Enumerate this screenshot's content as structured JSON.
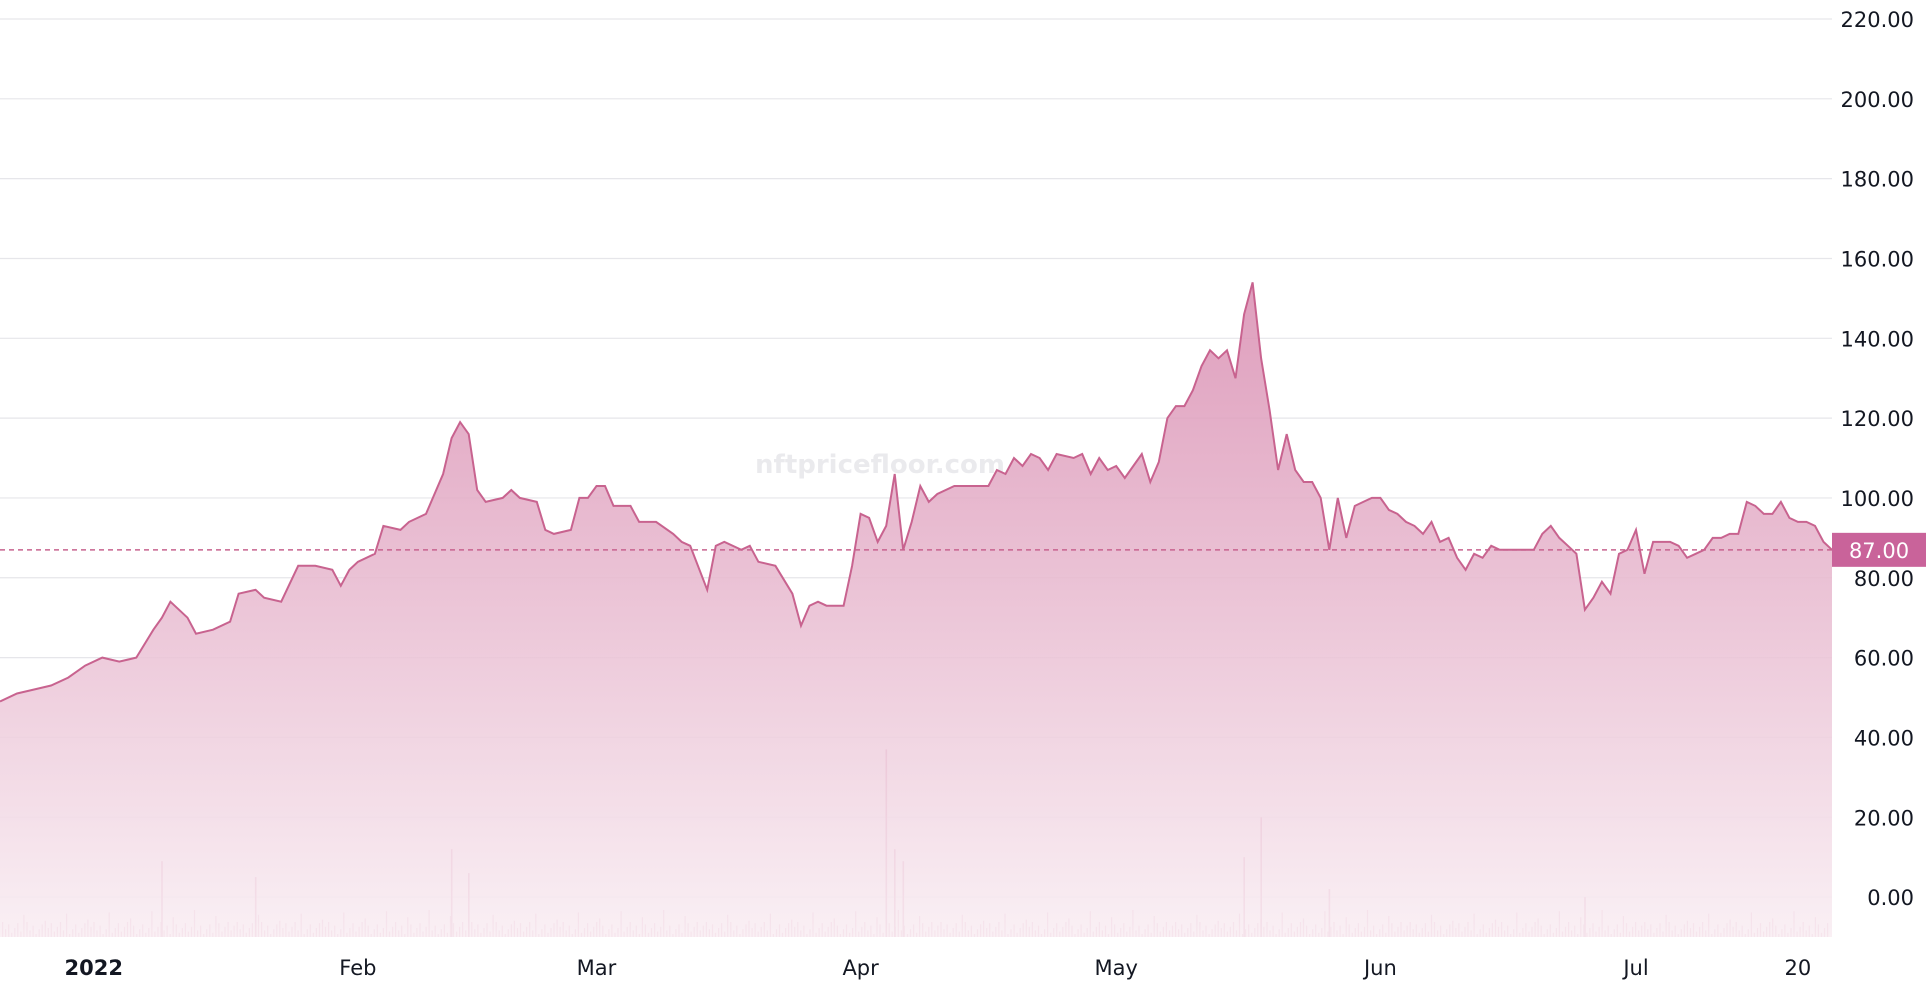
{
  "watermark": "nftpricefloor.com",
  "colors": {
    "line": "#c8638f",
    "fill_top": "#d98db1",
    "fill_bottom": "#f9eef3",
    "volume": "#d27ba2",
    "grid": "#e6e6ea",
    "price_label_bg": "#c9639a"
  },
  "current_price_label": "87.00",
  "chart_data": {
    "type": "area",
    "title": "",
    "xlabel": "",
    "ylabel": "",
    "ylim": [
      -10,
      222
    ],
    "y_axis_position": "right",
    "grid": true,
    "current_value": 87,
    "yticks": [
      "220.00",
      "200.00",
      "180.00",
      "160.00",
      "140.00",
      "120.00",
      "100.00",
      "80.00",
      "60.00",
      "40.00",
      "20.00",
      "0.00"
    ],
    "ytick_values": [
      220,
      200,
      180,
      160,
      140,
      120,
      100,
      80,
      60,
      40,
      20,
      0
    ],
    "xticks": [
      {
        "label": "2022",
        "date": "2022-01-01",
        "bold": true
      },
      {
        "label": "Feb",
        "date": "2022-02-01",
        "bold": false
      },
      {
        "label": "Mar",
        "date": "2022-03-01",
        "bold": false
      },
      {
        "label": "Apr",
        "date": "2022-04-01",
        "bold": false
      },
      {
        "label": "May",
        "date": "2022-05-01",
        "bold": false
      },
      {
        "label": "Jun",
        "date": "2022-06-01",
        "bold": false
      },
      {
        "label": "Jul",
        "date": "2022-07-01",
        "bold": false
      },
      {
        "label": "20",
        "date": "2022-07-20",
        "bold": false
      }
    ],
    "x_range": [
      "2021-12-21",
      "2022-07-24"
    ],
    "series": [
      {
        "points": [
          [
            "2021-12-21",
            49
          ],
          [
            "2021-12-23",
            51
          ],
          [
            "2021-12-25",
            52
          ],
          [
            "2021-12-27",
            53
          ],
          [
            "2021-12-29",
            55
          ],
          [
            "2021-12-31",
            58
          ],
          [
            "2022-01-02",
            60
          ],
          [
            "2022-01-04",
            59
          ],
          [
            "2022-01-06",
            60
          ],
          [
            "2022-01-08",
            67
          ],
          [
            "2022-01-09",
            70
          ],
          [
            "2022-01-10",
            74
          ],
          [
            "2022-01-12",
            70
          ],
          [
            "2022-01-13",
            66
          ],
          [
            "2022-01-15",
            67
          ],
          [
            "2022-01-17",
            69
          ],
          [
            "2022-01-18",
            76
          ],
          [
            "2022-01-20",
            77
          ],
          [
            "2022-01-21",
            75
          ],
          [
            "2022-01-23",
            74
          ],
          [
            "2022-01-25",
            83
          ],
          [
            "2022-01-27",
            83
          ],
          [
            "2022-01-29",
            82
          ],
          [
            "2022-01-30",
            78
          ],
          [
            "2022-01-31",
            82
          ],
          [
            "2022-02-01",
            84
          ],
          [
            "2022-02-03",
            86
          ],
          [
            "2022-02-04",
            93
          ],
          [
            "2022-02-06",
            92
          ],
          [
            "2022-02-07",
            94
          ],
          [
            "2022-02-09",
            96
          ],
          [
            "2022-02-11",
            106
          ],
          [
            "2022-02-12",
            115
          ],
          [
            "2022-02-13",
            119
          ],
          [
            "2022-02-14",
            116
          ],
          [
            "2022-02-15",
            102
          ],
          [
            "2022-02-16",
            99
          ],
          [
            "2022-02-18",
            100
          ],
          [
            "2022-02-19",
            102
          ],
          [
            "2022-02-20",
            100
          ],
          [
            "2022-02-22",
            99
          ],
          [
            "2022-02-23",
            92
          ],
          [
            "2022-02-24",
            91
          ],
          [
            "2022-02-26",
            92
          ],
          [
            "2022-02-27",
            100
          ],
          [
            "2022-02-28",
            100
          ],
          [
            "2022-03-01",
            103
          ],
          [
            "2022-03-02",
            103
          ],
          [
            "2022-03-03",
            98
          ],
          [
            "2022-03-05",
            98
          ],
          [
            "2022-03-06",
            94
          ],
          [
            "2022-03-08",
            94
          ],
          [
            "2022-03-10",
            91
          ],
          [
            "2022-03-11",
            89
          ],
          [
            "2022-03-12",
            88
          ],
          [
            "2022-03-14",
            77
          ],
          [
            "2022-03-15",
            88
          ],
          [
            "2022-03-16",
            89
          ],
          [
            "2022-03-18",
            87
          ],
          [
            "2022-03-19",
            88
          ],
          [
            "2022-03-20",
            84
          ],
          [
            "2022-03-22",
            83
          ],
          [
            "2022-03-24",
            76
          ],
          [
            "2022-03-25",
            68
          ],
          [
            "2022-03-26",
            73
          ],
          [
            "2022-03-27",
            74
          ],
          [
            "2022-03-28",
            73
          ],
          [
            "2022-03-30",
            73
          ],
          [
            "2022-03-31",
            83
          ],
          [
            "2022-04-01",
            96
          ],
          [
            "2022-04-02",
            95
          ],
          [
            "2022-04-03",
            89
          ],
          [
            "2022-04-04",
            93
          ],
          [
            "2022-04-05",
            106
          ],
          [
            "2022-04-06",
            87
          ],
          [
            "2022-04-07",
            94
          ],
          [
            "2022-04-08",
            103
          ],
          [
            "2022-04-09",
            99
          ],
          [
            "2022-04-10",
            101
          ],
          [
            "2022-04-12",
            103
          ],
          [
            "2022-04-14",
            103
          ],
          [
            "2022-04-16",
            103
          ],
          [
            "2022-04-17",
            107
          ],
          [
            "2022-04-18",
            106
          ],
          [
            "2022-04-19",
            110
          ],
          [
            "2022-04-20",
            108
          ],
          [
            "2022-04-21",
            111
          ],
          [
            "2022-04-22",
            110
          ],
          [
            "2022-04-23",
            107
          ],
          [
            "2022-04-24",
            111
          ],
          [
            "2022-04-26",
            110
          ],
          [
            "2022-04-27",
            111
          ],
          [
            "2022-04-28",
            106
          ],
          [
            "2022-04-29",
            110
          ],
          [
            "2022-04-30",
            107
          ],
          [
            "2022-05-01",
            108
          ],
          [
            "2022-05-02",
            105
          ],
          [
            "2022-05-03",
            108
          ],
          [
            "2022-05-04",
            111
          ],
          [
            "2022-05-05",
            104
          ],
          [
            "2022-05-06",
            109
          ],
          [
            "2022-05-07",
            120
          ],
          [
            "2022-05-08",
            123
          ],
          [
            "2022-05-09",
            123
          ],
          [
            "2022-05-10",
            127
          ],
          [
            "2022-05-11",
            133
          ],
          [
            "2022-05-12",
            137
          ],
          [
            "2022-05-13",
            135
          ],
          [
            "2022-05-14",
            137
          ],
          [
            "2022-05-15",
            130
          ],
          [
            "2022-05-16",
            146
          ],
          [
            "2022-05-17",
            154
          ],
          [
            "2022-05-18",
            135
          ],
          [
            "2022-05-19",
            122
          ],
          [
            "2022-05-20",
            107
          ],
          [
            "2022-05-21",
            116
          ],
          [
            "2022-05-22",
            107
          ],
          [
            "2022-05-23",
            104
          ],
          [
            "2022-05-24",
            104
          ],
          [
            "2022-05-25",
            100
          ],
          [
            "2022-05-26",
            87
          ],
          [
            "2022-05-27",
            100
          ],
          [
            "2022-05-28",
            90
          ],
          [
            "2022-05-29",
            98
          ],
          [
            "2022-05-30",
            99
          ],
          [
            "2022-05-31",
            100
          ],
          [
            "2022-06-01",
            100
          ],
          [
            "2022-06-02",
            97
          ],
          [
            "2022-06-03",
            96
          ],
          [
            "2022-06-04",
            94
          ],
          [
            "2022-06-05",
            93
          ],
          [
            "2022-06-06",
            91
          ],
          [
            "2022-06-07",
            94
          ],
          [
            "2022-06-08",
            89
          ],
          [
            "2022-06-09",
            90
          ],
          [
            "2022-06-10",
            85
          ],
          [
            "2022-06-11",
            82
          ],
          [
            "2022-06-12",
            86
          ],
          [
            "2022-06-13",
            85
          ],
          [
            "2022-06-14",
            88
          ],
          [
            "2022-06-15",
            87
          ],
          [
            "2022-06-16",
            87
          ],
          [
            "2022-06-18",
            87
          ],
          [
            "2022-06-19",
            87
          ],
          [
            "2022-06-20",
            91
          ],
          [
            "2022-06-21",
            93
          ],
          [
            "2022-06-22",
            90
          ],
          [
            "2022-06-23",
            88
          ],
          [
            "2022-06-24",
            86
          ],
          [
            "2022-06-25",
            72
          ],
          [
            "2022-06-26",
            75
          ],
          [
            "2022-06-27",
            79
          ],
          [
            "2022-06-28",
            76
          ],
          [
            "2022-06-29",
            86
          ],
          [
            "2022-06-30",
            87
          ],
          [
            "2022-07-01",
            92
          ],
          [
            "2022-07-02",
            81
          ],
          [
            "2022-07-03",
            89
          ],
          [
            "2022-07-04",
            89
          ],
          [
            "2022-07-05",
            89
          ],
          [
            "2022-07-06",
            88
          ],
          [
            "2022-07-07",
            85
          ],
          [
            "2022-07-08",
            86
          ],
          [
            "2022-07-09",
            87
          ],
          [
            "2022-07-10",
            90
          ],
          [
            "2022-07-11",
            90
          ],
          [
            "2022-07-12",
            91
          ],
          [
            "2022-07-13",
            91
          ],
          [
            "2022-07-14",
            99
          ],
          [
            "2022-07-15",
            98
          ],
          [
            "2022-07-16",
            96
          ],
          [
            "2022-07-17",
            96
          ],
          [
            "2022-07-18",
            99
          ],
          [
            "2022-07-19",
            95
          ],
          [
            "2022-07-20",
            94
          ],
          [
            "2022-07-21",
            94
          ],
          [
            "2022-07-22",
            93
          ],
          [
            "2022-07-23",
            89
          ],
          [
            "2022-07-24",
            87
          ]
        ]
      }
    ],
    "volume": [
      {
        "date": "2022-01-09",
        "value": 9
      },
      {
        "date": "2022-01-20",
        "value": 5
      },
      {
        "date": "2022-02-12",
        "value": 12
      },
      {
        "date": "2022-02-14",
        "value": 6
      },
      {
        "date": "2022-04-04",
        "value": 37
      },
      {
        "date": "2022-04-05",
        "value": 12
      },
      {
        "date": "2022-04-06",
        "value": 9
      },
      {
        "date": "2022-05-16",
        "value": 10
      },
      {
        "date": "2022-05-18",
        "value": 20
      },
      {
        "date": "2022-05-26",
        "value": 2
      },
      {
        "date": "2022-06-25",
        "value": 0
      }
    ]
  }
}
